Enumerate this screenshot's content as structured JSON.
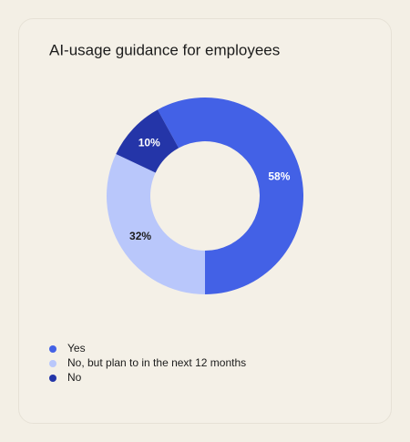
{
  "chart_data": {
    "type": "donut",
    "title": "AI-usage guidance for employees",
    "categories": [
      "Yes",
      "No, but plan to in the next 12 months",
      "No"
    ],
    "values": [
      58,
      32,
      10
    ],
    "value_labels": [
      "58%",
      "32%",
      "10%"
    ],
    "colors": [
      "#4361e6",
      "#b9c7fb",
      "#2435a8"
    ],
    "start_direction": "clockwise"
  }
}
